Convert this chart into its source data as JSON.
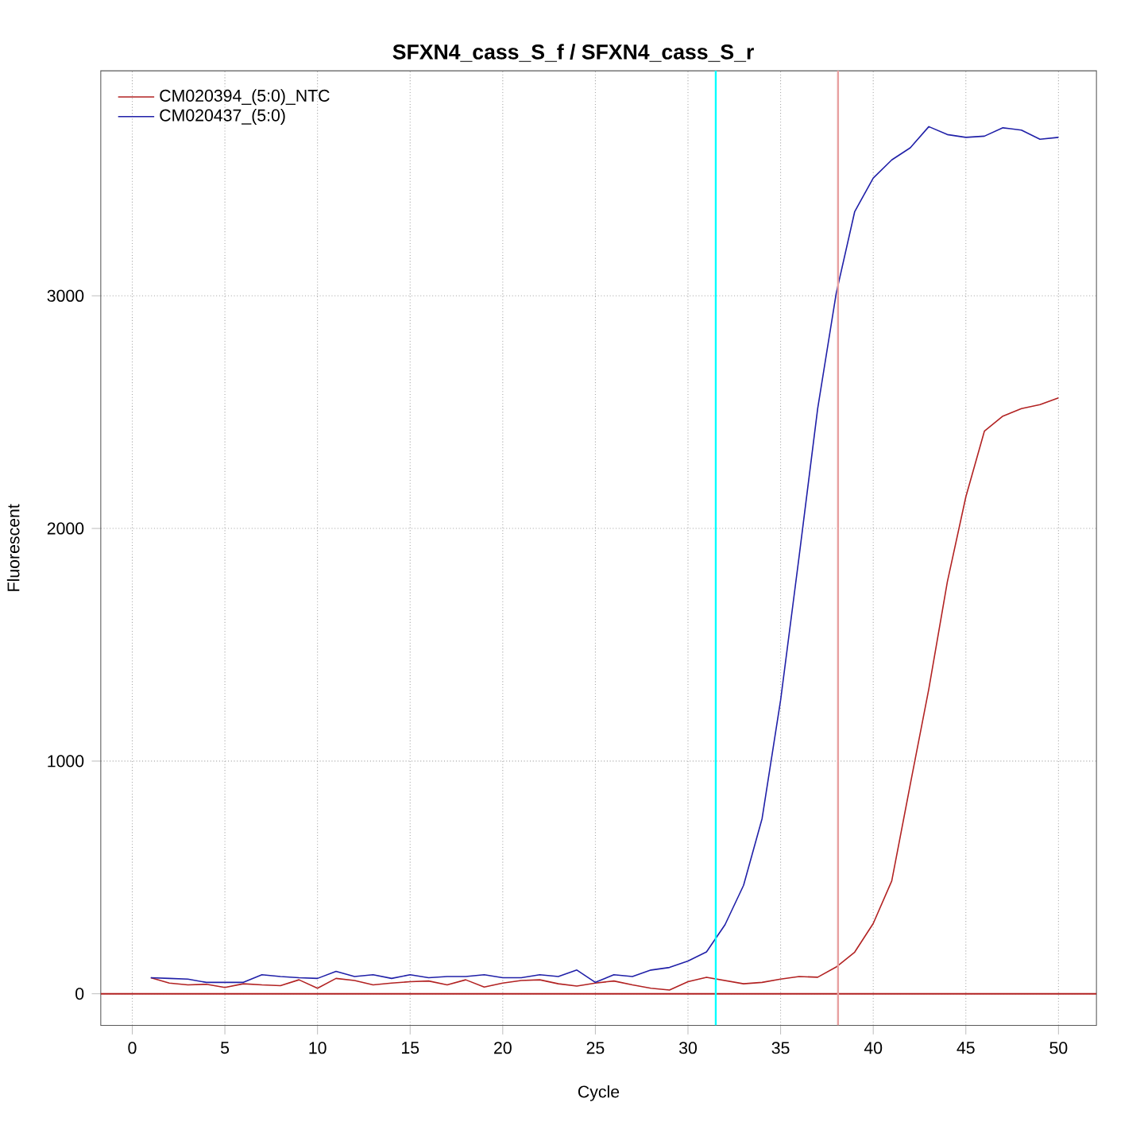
{
  "chart_data": {
    "type": "line",
    "title": "SFXN4_cass_S_f / SFXN4_cass_S_r",
    "xlabel": "Cycle",
    "ylabel": "Fluorescent",
    "x": [
      1,
      2,
      3,
      4,
      5,
      6,
      7,
      8,
      9,
      10,
      11,
      12,
      13,
      14,
      15,
      16,
      17,
      18,
      19,
      20,
      21,
      22,
      23,
      24,
      25,
      26,
      27,
      28,
      29,
      30,
      31,
      32,
      33,
      34,
      35,
      36,
      37,
      38,
      39,
      40,
      41,
      42,
      43,
      44,
      45,
      46,
      47,
      48,
      49,
      50
    ],
    "series": [
      {
        "name": "CM020394_(5:0)_NTC",
        "color": "#b22222",
        "values": [
          69,
          46,
          38,
          41,
          27,
          43,
          38,
          35,
          60,
          24,
          66,
          57,
          38,
          46,
          52,
          55,
          38,
          60,
          29,
          46,
          57,
          60,
          43,
          33,
          46,
          55,
          38,
          24,
          16,
          52,
          71,
          57,
          43,
          49,
          63,
          74,
          71,
          115,
          179,
          302,
          485,
          900,
          1310,
          1770,
          2136,
          2418,
          2483,
          2515,
          2532,
          2561
        ]
      },
      {
        "name": "CM020437_(5:0)",
        "color": "#2020a8",
        "values": [
          69,
          66,
          63,
          49,
          49,
          49,
          82,
          74,
          69,
          66,
          96,
          74,
          82,
          66,
          82,
          69,
          74,
          74,
          82,
          69,
          69,
          82,
          74,
          102,
          49,
          82,
          74,
          102,
          113,
          141,
          180,
          297,
          466,
          753,
          1262,
          1880,
          2515,
          3010,
          3362,
          3506,
          3584,
          3636,
          3727,
          3693,
          3681,
          3686,
          3722,
          3712,
          3673,
          3681
        ]
      }
    ],
    "xlim": [
      -1.7,
      52.05
    ],
    "ylim": [
      -136,
      3967
    ],
    "xticks": [
      0,
      5,
      10,
      15,
      20,
      25,
      30,
      35,
      40,
      45,
      50
    ],
    "yticks": [
      0,
      1000,
      2000,
      3000
    ],
    "ref_lines": [
      {
        "axis": "y",
        "value": 0,
        "color": "#b22222"
      },
      {
        "axis": "x",
        "value": 31.5,
        "color": "#00ffff"
      },
      {
        "axis": "x",
        "value": 38.1,
        "color": "#e8a0a0"
      }
    ],
    "grid": true,
    "legend": "top left",
    "marker": "none",
    "line_style": "solid"
  }
}
